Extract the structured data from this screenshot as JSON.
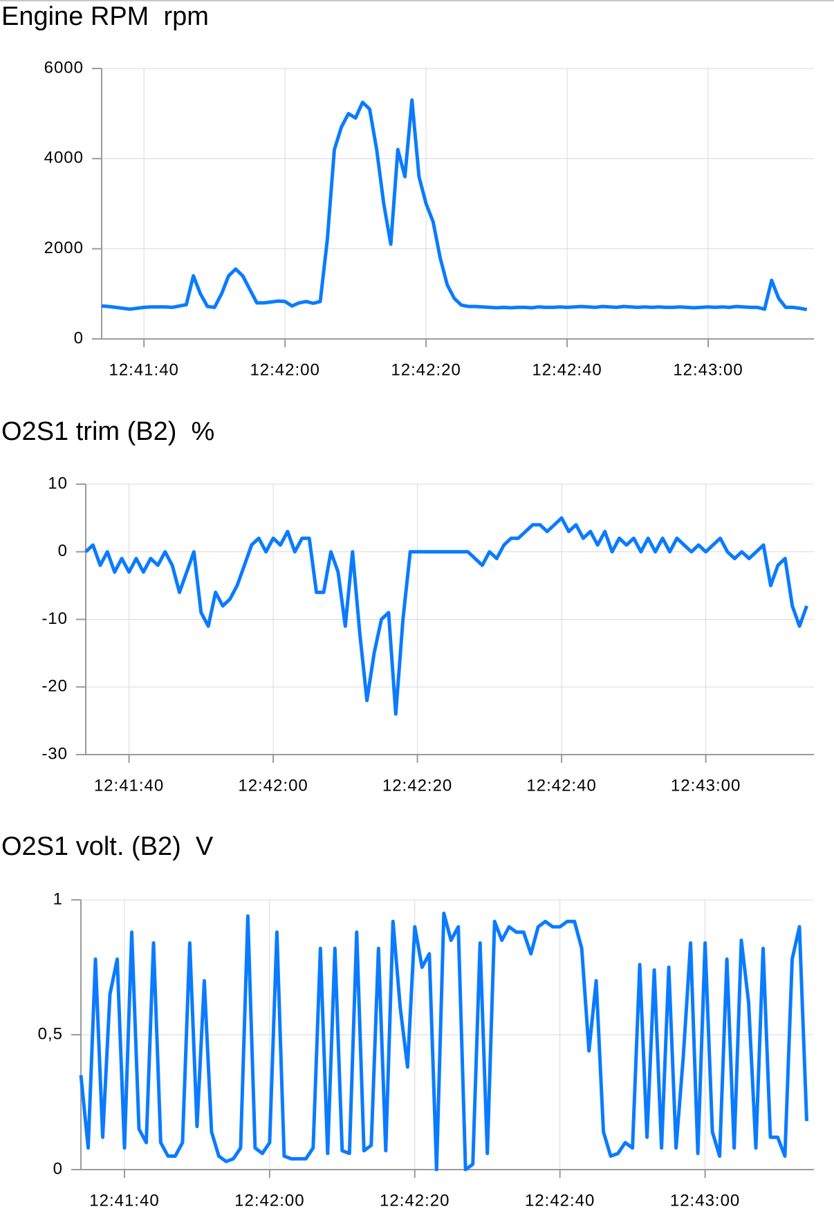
{
  "chart_data": [
    {
      "type": "line",
      "title": "Engine RPM  rpm",
      "color": "#0a7bff",
      "grid": true,
      "x": [
        "12:41:34",
        "12:41:35",
        "12:41:36",
        "12:41:37",
        "12:41:38",
        "12:41:39",
        "12:41:40",
        "12:41:41",
        "12:41:42",
        "12:41:43",
        "12:41:44",
        "12:41:45",
        "12:41:46",
        "12:41:47",
        "12:41:48",
        "12:41:49",
        "12:41:50",
        "12:41:51",
        "12:41:52",
        "12:41:53",
        "12:41:54",
        "12:41:55",
        "12:41:56",
        "12:41:57",
        "12:41:58",
        "12:41:59",
        "12:42:00",
        "12:42:01",
        "12:42:02",
        "12:42:03",
        "12:42:04",
        "12:42:05",
        "12:42:06",
        "12:42:07",
        "12:42:08",
        "12:42:09",
        "12:42:10",
        "12:42:11",
        "12:42:12",
        "12:42:13",
        "12:42:14",
        "12:42:15",
        "12:42:16",
        "12:42:17",
        "12:42:18",
        "12:42:19",
        "12:42:20",
        "12:42:21",
        "12:42:22",
        "12:42:23",
        "12:42:24",
        "12:42:25",
        "12:42:26",
        "12:42:27",
        "12:42:28",
        "12:42:29",
        "12:42:30",
        "12:42:31",
        "12:42:32",
        "12:42:33",
        "12:42:34",
        "12:42:35",
        "12:42:36",
        "12:42:37",
        "12:42:38",
        "12:42:39",
        "12:42:40",
        "12:42:41",
        "12:42:42",
        "12:42:43",
        "12:42:44",
        "12:42:45",
        "12:42:46",
        "12:42:47",
        "12:42:48",
        "12:42:49",
        "12:42:50",
        "12:42:51",
        "12:42:52",
        "12:42:53",
        "12:42:54",
        "12:42:55",
        "12:42:56",
        "12:42:57",
        "12:42:58",
        "12:42:59",
        "12:43:00",
        "12:43:01",
        "12:43:02",
        "12:43:03",
        "12:43:04",
        "12:43:05",
        "12:43:06",
        "12:43:07",
        "12:43:08",
        "12:43:09",
        "12:43:10",
        "12:43:11",
        "12:43:12",
        "12:43:13",
        "12:43:14"
      ],
      "values": [
        730,
        720,
        700,
        680,
        660,
        680,
        700,
        710,
        710,
        710,
        700,
        730,
        760,
        1400,
        1000,
        720,
        700,
        1000,
        1400,
        1550,
        1400,
        1100,
        800,
        800,
        820,
        840,
        830,
        730,
        800,
        830,
        790,
        830,
        2200,
        4200,
        4700,
        5000,
        4900,
        5250,
        5100,
        4200,
        3000,
        2100,
        4200,
        3600,
        5300,
        3600,
        3000,
        2600,
        1800,
        1200,
        900,
        750,
        720,
        720,
        710,
        700,
        690,
        700,
        690,
        700,
        700,
        690,
        710,
        700,
        700,
        710,
        700,
        710,
        720,
        710,
        700,
        720,
        710,
        700,
        720,
        710,
        700,
        710,
        700,
        710,
        700,
        700,
        710,
        700,
        690,
        700,
        710,
        700,
        710,
        700,
        720,
        710,
        700,
        700,
        660,
        1300,
        900,
        700,
        700,
        680,
        650
      ],
      "xlim": [
        "12:41:34",
        "12:43:15"
      ],
      "xticks": [
        "12:41:40",
        "12:42:00",
        "12:42:20",
        "12:42:40",
        "12:43:00"
      ],
      "ylim": [
        0,
        6000
      ],
      "yticks": [
        0,
        2000,
        4000,
        6000
      ]
    },
    {
      "type": "line",
      "title": "O2S1 trim (B2)  %",
      "color": "#0a7bff",
      "grid": true,
      "x": [
        "12:41:34",
        "12:41:35",
        "12:41:36",
        "12:41:37",
        "12:41:38",
        "12:41:39",
        "12:41:40",
        "12:41:41",
        "12:41:42",
        "12:41:43",
        "12:41:44",
        "12:41:45",
        "12:41:46",
        "12:41:47",
        "12:41:48",
        "12:41:49",
        "12:41:50",
        "12:41:51",
        "12:41:52",
        "12:41:53",
        "12:41:54",
        "12:41:55",
        "12:41:56",
        "12:41:57",
        "12:41:58",
        "12:41:59",
        "12:42:00",
        "12:42:01",
        "12:42:02",
        "12:42:03",
        "12:42:04",
        "12:42:05",
        "12:42:06",
        "12:42:07",
        "12:42:08",
        "12:42:09",
        "12:42:10",
        "12:42:11",
        "12:42:12",
        "12:42:13",
        "12:42:14",
        "12:42:15",
        "12:42:16",
        "12:42:17",
        "12:42:18",
        "12:42:19",
        "12:42:20",
        "12:42:21",
        "12:42:22",
        "12:42:23",
        "12:42:24",
        "12:42:25",
        "12:42:26",
        "12:42:27",
        "12:42:28",
        "12:42:29",
        "12:42:30",
        "12:42:31",
        "12:42:32",
        "12:42:33",
        "12:42:34",
        "12:42:35",
        "12:42:36",
        "12:42:37",
        "12:42:38",
        "12:42:39",
        "12:42:40",
        "12:42:41",
        "12:42:42",
        "12:42:43",
        "12:42:44",
        "12:42:45",
        "12:42:46",
        "12:42:47",
        "12:42:48",
        "12:42:49",
        "12:42:50",
        "12:42:51",
        "12:42:52",
        "12:42:53",
        "12:42:54",
        "12:42:55",
        "12:42:56",
        "12:42:57",
        "12:42:58",
        "12:42:59",
        "12:43:00",
        "12:43:01",
        "12:43:02",
        "12:43:03",
        "12:43:04",
        "12:43:05",
        "12:43:06",
        "12:43:07",
        "12:43:08",
        "12:43:09",
        "12:43:10",
        "12:43:11",
        "12:43:12",
        "12:43:13",
        "12:43:14"
      ],
      "values": [
        0,
        1,
        -2,
        0,
        -3,
        -1,
        -3,
        -1,
        -3,
        -1,
        -2,
        0,
        -2,
        -6,
        -3,
        0,
        -9,
        -11,
        -6,
        -8,
        -7,
        -5,
        -2,
        1,
        2,
        0,
        2,
        1,
        3,
        0,
        2,
        2,
        -6,
        -6,
        0,
        -3,
        -11,
        0,
        -12,
        -22,
        -15,
        -10,
        -9,
        -24,
        -10,
        0,
        0,
        0,
        0,
        0,
        0,
        0,
        0,
        0,
        -1,
        -2,
        0,
        -1,
        1,
        2,
        2,
        3,
        4,
        4,
        3,
        4,
        5,
        3,
        4,
        2,
        3,
        1,
        3,
        0,
        2,
        1,
        2,
        0,
        2,
        0,
        2,
        0,
        2,
        1,
        0,
        1,
        0,
        1,
        2,
        0,
        -1,
        0,
        -1,
        0,
        1,
        -5,
        -2,
        -1,
        -8,
        -11,
        -8
      ],
      "xlim": [
        "12:41:34",
        "12:43:15"
      ],
      "xticks": [
        "12:41:40",
        "12:42:00",
        "12:42:20",
        "12:42:40",
        "12:43:00"
      ],
      "ylim": [
        -30,
        10
      ],
      "yticks": [
        -30,
        -20,
        -10,
        0,
        10
      ]
    },
    {
      "type": "line",
      "title": "O2S1 volt. (B2)  V",
      "color": "#0a7bff",
      "grid": true,
      "x": [
        "12:41:34",
        "12:41:35",
        "12:41:36",
        "12:41:37",
        "12:41:38",
        "12:41:39",
        "12:41:40",
        "12:41:41",
        "12:41:42",
        "12:41:43",
        "12:41:44",
        "12:41:45",
        "12:41:46",
        "12:41:47",
        "12:41:48",
        "12:41:49",
        "12:41:50",
        "12:41:51",
        "12:41:52",
        "12:41:53",
        "12:41:54",
        "12:41:55",
        "12:41:56",
        "12:41:57",
        "12:41:58",
        "12:41:59",
        "12:42:00",
        "12:42:01",
        "12:42:02",
        "12:42:03",
        "12:42:04",
        "12:42:05",
        "12:42:06",
        "12:42:07",
        "12:42:08",
        "12:42:09",
        "12:42:10",
        "12:42:11",
        "12:42:12",
        "12:42:13",
        "12:42:14",
        "12:42:15",
        "12:42:16",
        "12:42:17",
        "12:42:18",
        "12:42:19",
        "12:42:20",
        "12:42:21",
        "12:42:22",
        "12:42:23",
        "12:42:24",
        "12:42:25",
        "12:42:26",
        "12:42:27",
        "12:42:28",
        "12:42:29",
        "12:42:30",
        "12:42:31",
        "12:42:32",
        "12:42:33",
        "12:42:34",
        "12:42:35",
        "12:42:36",
        "12:42:37",
        "12:42:38",
        "12:42:39",
        "12:42:40",
        "12:42:41",
        "12:42:42",
        "12:42:43",
        "12:42:44",
        "12:42:45",
        "12:42:46",
        "12:42:47",
        "12:42:48",
        "12:42:49",
        "12:42:50",
        "12:42:51",
        "12:42:52",
        "12:42:53",
        "12:42:54",
        "12:42:55",
        "12:42:56",
        "12:42:57",
        "12:42:58",
        "12:42:59",
        "12:43:00",
        "12:43:01",
        "12:43:02",
        "12:43:03",
        "12:43:04",
        "12:43:05",
        "12:43:06",
        "12:43:07",
        "12:43:08",
        "12:43:09",
        "12:43:10",
        "12:43:11",
        "12:43:12",
        "12:43:13",
        "12:43:14"
      ],
      "values": [
        0.35,
        0.08,
        0.78,
        0.12,
        0.65,
        0.78,
        0.08,
        0.88,
        0.15,
        0.1,
        0.84,
        0.1,
        0.05,
        0.05,
        0.1,
        0.84,
        0.16,
        0.7,
        0.14,
        0.05,
        0.03,
        0.04,
        0.08,
        0.94,
        0.08,
        0.06,
        0.1,
        0.88,
        0.05,
        0.04,
        0.04,
        0.04,
        0.08,
        0.82,
        0.06,
        0.82,
        0.07,
        0.06,
        0.88,
        0.07,
        0.09,
        0.82,
        0.07,
        0.92,
        0.6,
        0.38,
        0.9,
        0.75,
        0.8,
        0.0,
        0.95,
        0.85,
        0.9,
        0.0,
        0.02,
        0.84,
        0.06,
        0.92,
        0.85,
        0.9,
        0.88,
        0.88,
        0.8,
        0.9,
        0.92,
        0.9,
        0.9,
        0.92,
        0.92,
        0.82,
        0.44,
        0.7,
        0.14,
        0.05,
        0.06,
        0.1,
        0.08,
        0.76,
        0.12,
        0.74,
        0.08,
        0.75,
        0.08,
        0.42,
        0.84,
        0.06,
        0.84,
        0.14,
        0.05,
        0.78,
        0.08,
        0.85,
        0.62,
        0.08,
        0.82,
        0.12,
        0.12,
        0.05,
        0.78,
        0.9,
        0.18
      ],
      "xlim": [
        "12:41:34",
        "12:43:15"
      ],
      "xticks": [
        "12:41:40",
        "12:42:00",
        "12:42:20",
        "12:42:40",
        "12:43:00"
      ],
      "ylim": [
        0,
        1
      ],
      "yticks": [
        0,
        {
          "value": 0.5,
          "label": "0,5"
        },
        1
      ]
    }
  ]
}
